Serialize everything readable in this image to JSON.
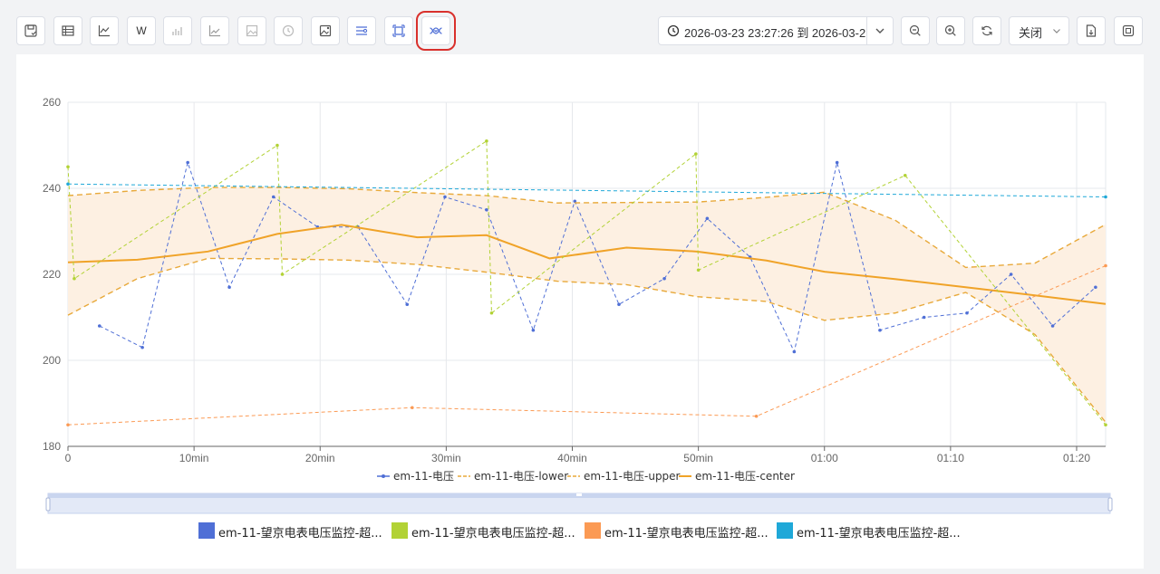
{
  "toolbar": {
    "left_buttons": [
      {
        "name": "save-icon-button",
        "icon": "save-icon"
      },
      {
        "name": "table-view-button",
        "icon": "table-icon"
      },
      {
        "name": "line-chart-button",
        "icon": "line-chart-icon"
      },
      {
        "name": "w-button",
        "icon": "w-text-icon",
        "label": "W"
      },
      {
        "name": "bar-chart-button",
        "icon": "bar-chart-icon"
      },
      {
        "name": "trend-chart-button",
        "icon": "trend-icon"
      },
      {
        "name": "image-button",
        "icon": "image-icon"
      },
      {
        "name": "history-button",
        "icon": "history-icon"
      },
      {
        "name": "image-edit-button",
        "icon": "image-edit-icon"
      },
      {
        "name": "list-settings-button",
        "icon": "list-settings-icon"
      },
      {
        "name": "frame-select-button",
        "icon": "frame-icon"
      },
      {
        "name": "band-button",
        "icon": "band-icon",
        "highlighted": true
      }
    ],
    "date_range": "2026-03-23 23:27:26 到 2026-03-2",
    "right_buttons": [
      {
        "name": "zoom-out-button",
        "icon": "zoom-out-icon"
      },
      {
        "name": "zoom-in-button",
        "icon": "zoom-in-icon"
      },
      {
        "name": "refresh-button",
        "icon": "refresh-icon"
      }
    ],
    "auto_refresh_select": "关闭",
    "export_icon": "export-file-icon",
    "fullscreen_icon": "fullscreen-icon",
    "highlight_color": "#d9302c"
  },
  "chart_data": {
    "type": "line",
    "x_unit": "minutes",
    "x_ticks": [
      {
        "v": 0,
        "label": "0"
      },
      {
        "v": 10,
        "label": "10min"
      },
      {
        "v": 20,
        "label": "20min"
      },
      {
        "v": 30,
        "label": "30min"
      },
      {
        "v": 40,
        "label": "40min"
      },
      {
        "v": 50,
        "label": "50min"
      },
      {
        "v": 60,
        "label": "01:00"
      },
      {
        "v": 70,
        "label": "01:10"
      },
      {
        "v": 80,
        "label": "01:20"
      }
    ],
    "xlim": [
      0,
      82.3
    ],
    "ylim": [
      180,
      260
    ],
    "y_ticks": [
      180,
      200,
      220,
      240,
      260
    ],
    "band_fill": "#fdf0e2",
    "series": [
      {
        "name": "em-11-电压",
        "color": "#4f6fd6",
        "dash": true,
        "marker": true,
        "points": [
          [
            2.5,
            208
          ],
          [
            5.9,
            203
          ],
          [
            9.5,
            246
          ],
          [
            12.8,
            217
          ],
          [
            16.3,
            238
          ],
          [
            19.8,
            231
          ],
          [
            23.0,
            231
          ],
          [
            26.9,
            213
          ],
          [
            29.9,
            238
          ],
          [
            33.2,
            235
          ],
          [
            36.9,
            207
          ],
          [
            40.2,
            237
          ],
          [
            43.7,
            213
          ],
          [
            47.3,
            219
          ],
          [
            50.7,
            233
          ],
          [
            54.1,
            224
          ],
          [
            57.6,
            202
          ],
          [
            61.0,
            246
          ],
          [
            64.4,
            207
          ],
          [
            67.9,
            210
          ],
          [
            71.3,
            211
          ],
          [
            74.8,
            220
          ],
          [
            78.1,
            208
          ],
          [
            81.5,
            217
          ]
        ]
      },
      {
        "name": "em-11-电压-lower",
        "color": "#e8a93a",
        "dash": true,
        "marker": false,
        "points": [
          [
            0,
            210.5
          ],
          [
            5.5,
            219
          ],
          [
            11.1,
            223.7
          ],
          [
            16.6,
            223.6
          ],
          [
            22.2,
            223.3
          ],
          [
            27.7,
            222.3
          ],
          [
            33.2,
            220.5
          ],
          [
            38.8,
            218.4
          ],
          [
            44.3,
            217.6
          ],
          [
            49.9,
            214.8
          ],
          [
            55.4,
            213.7
          ],
          [
            60.0,
            209.3
          ],
          [
            65.6,
            211.0
          ],
          [
            71.2,
            215.8
          ],
          [
            76.7,
            206.0
          ],
          [
            82.3,
            185.6
          ]
        ]
      },
      {
        "name": "em-11-电压-upper",
        "color": "#e8a93a",
        "dash": true,
        "marker": false,
        "points": [
          [
            0,
            238.3
          ],
          [
            5.5,
            239.5
          ],
          [
            11.1,
            240.2
          ],
          [
            16.6,
            240.2
          ],
          [
            22.2,
            239.9
          ],
          [
            27.7,
            239.0
          ],
          [
            33.2,
            238.3
          ],
          [
            38.8,
            236.6
          ],
          [
            44.3,
            236.7
          ],
          [
            49.9,
            236.8
          ],
          [
            55.4,
            237.9
          ],
          [
            60.0,
            239.1
          ],
          [
            65.6,
            232.6
          ],
          [
            71.2,
            221.6
          ],
          [
            76.7,
            222.6
          ],
          [
            82.3,
            231.6
          ]
        ]
      },
      {
        "name": "em-11-电压-center",
        "color": "#f0a328",
        "dash": false,
        "marker": false,
        "points": [
          [
            0,
            222.8
          ],
          [
            5.5,
            223.4
          ],
          [
            11.1,
            225.3
          ],
          [
            16.6,
            229.4
          ],
          [
            21.7,
            231.5
          ],
          [
            27.7,
            228.6
          ],
          [
            33.2,
            229.1
          ],
          [
            38.2,
            223.7
          ],
          [
            44.3,
            226.2
          ],
          [
            49.9,
            225.3
          ],
          [
            55.4,
            223.2
          ],
          [
            60.0,
            220.6
          ],
          [
            65.6,
            218.9
          ],
          [
            71.2,
            217.0
          ],
          [
            76.7,
            215.1
          ],
          [
            82.3,
            213.1
          ]
        ]
      },
      {
        "name": "em-11-望京电表电压监控-超...",
        "color": "#b2d235",
        "dash": true,
        "marker": true,
        "legend": false,
        "points": [
          [
            0,
            245
          ],
          [
            0.5,
            219
          ],
          [
            16.6,
            250
          ],
          [
            17.0,
            220
          ],
          [
            33.2,
            251
          ],
          [
            33.6,
            211
          ],
          [
            49.8,
            248
          ],
          [
            50.0,
            221
          ],
          [
            66.4,
            243
          ],
          [
            82.3,
            185
          ]
        ]
      },
      {
        "name": "em-11-望京电表电压监控-超...",
        "color": "#fb9a54",
        "dash": true,
        "marker": true,
        "legend": false,
        "points": [
          [
            0,
            185
          ],
          [
            27.3,
            189
          ],
          [
            54.6,
            187
          ],
          [
            82.3,
            222
          ]
        ]
      },
      {
        "name": "em-11-望京电表电压监控-超...",
        "color": "#1fa8d8",
        "dash": true,
        "marker": true,
        "legend": false,
        "points": [
          [
            0,
            241
          ],
          [
            82.3,
            238
          ]
        ]
      }
    ]
  },
  "bottom_legend": [
    {
      "label": "em-11-望京电表电压监控-超...",
      "color": "#4f6fd6"
    },
    {
      "label": "em-11-望京电表电压监控-超...",
      "color": "#b2d235"
    },
    {
      "label": "em-11-望京电表电压监控-超...",
      "color": "#fb9a54"
    },
    {
      "label": "em-11-望京电表电压监控-超...",
      "color": "#1fa8d8"
    }
  ]
}
